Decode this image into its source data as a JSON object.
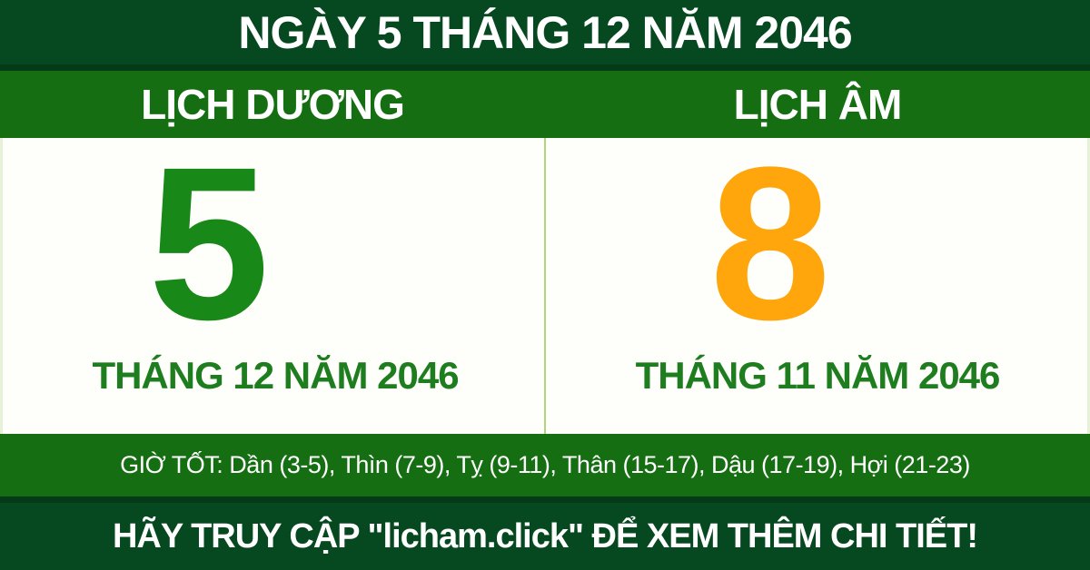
{
  "header": {
    "title": "NGÀY 5 THÁNG 12 NĂM 2046"
  },
  "solar": {
    "label": "LỊCH DƯƠNG",
    "day": "5",
    "month_year": "THÁNG 12 NĂM 2046"
  },
  "lunar": {
    "label": "LỊCH ÂM",
    "day": "8",
    "month_year": "THÁNG 11 NĂM 2046"
  },
  "good_hours": {
    "text": "GIỜ TỐT: Dần (3-5), Thìn (7-9), Tỵ (9-11), Thân (15-17), Dậu (17-19), Hợi (21-23)"
  },
  "footer": {
    "cta": "HÃY TRUY CẬP \"licham.click\" ĐỂ XEM THÊM CHI TIẾT!"
  },
  "colors": {
    "dark_green": "#06481f",
    "darker_green": "#053a18",
    "medium_green": "#156e11",
    "day_green": "#188818",
    "day_orange": "#ffa60d",
    "month_green": "#1e7d1e",
    "divider_green": "#b2d47e",
    "text_white": "#ffffff"
  }
}
